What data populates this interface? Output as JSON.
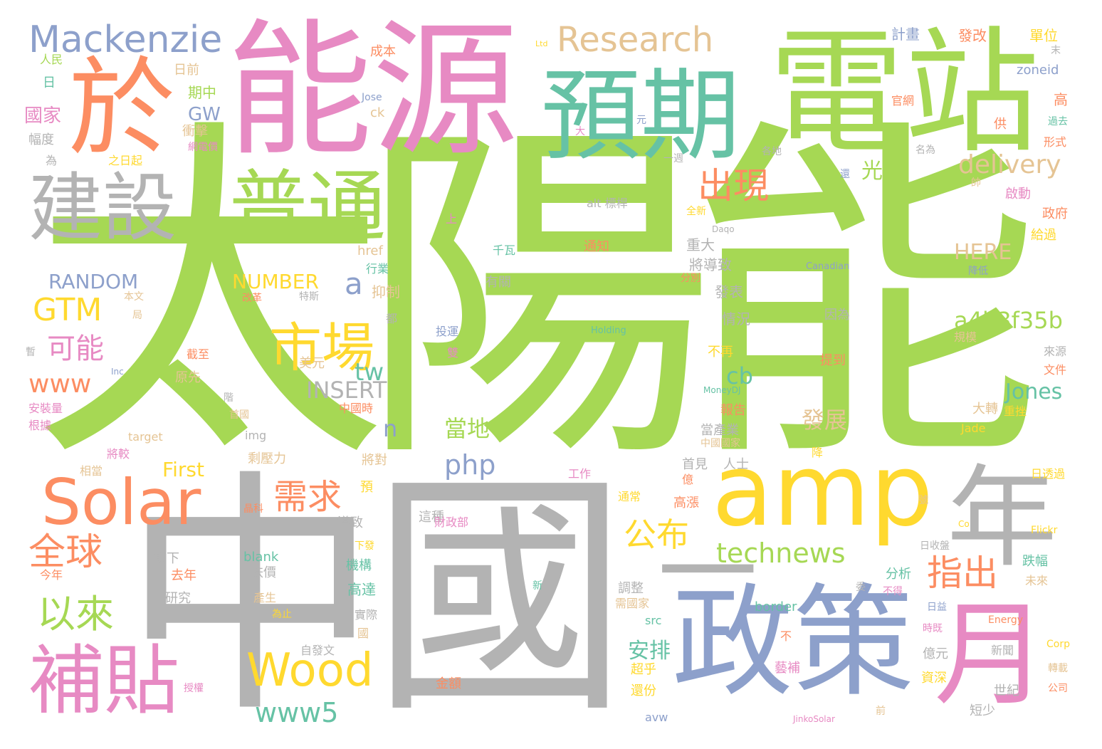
{
  "palette": {
    "green": "#a6d854",
    "gray": "#b3b3b3",
    "pink": "#e78ac3",
    "orange": "#fc8d62",
    "blue": "#8da0cb",
    "yellow": "#ffd92f",
    "teal": "#66c2a5",
    "tan": "#e5c494"
  },
  "words": [
    {
      "text": "太陽能",
      "color": "green"
    },
    {
      "text": "中國",
      "color": "gray"
    },
    {
      "text": "能源",
      "color": "pink"
    },
    {
      "text": "電站",
      "color": "green"
    },
    {
      "text": "於",
      "color": "orange"
    },
    {
      "text": "預期",
      "color": "teal"
    },
    {
      "text": "建設",
      "color": "gray"
    },
    {
      "text": "普通",
      "color": "green"
    },
    {
      "text": "Mackenzie",
      "color": "blue"
    },
    {
      "text": "Research",
      "color": "tan"
    },
    {
      "text": "amp",
      "color": "yellow"
    },
    {
      "text": "年",
      "color": "gray"
    },
    {
      "text": "政策",
      "color": "blue"
    },
    {
      "text": "月",
      "color": "pink"
    },
    {
      "text": "Solar",
      "color": "orange"
    },
    {
      "text": "補貼",
      "color": "pink"
    },
    {
      "text": "市場",
      "color": "yellow"
    },
    {
      "text": "Wood",
      "color": "yellow"
    },
    {
      "text": "一",
      "color": "gray"
    },
    {
      "text": "出現",
      "color": "orange"
    },
    {
      "text": "delivery",
      "color": "tan"
    },
    {
      "text": "需求",
      "color": "orange"
    },
    {
      "text": "全球",
      "color": "orange"
    },
    {
      "text": "以來",
      "color": "green"
    },
    {
      "text": "公布",
      "color": "yellow"
    },
    {
      "text": "technews",
      "color": "green"
    },
    {
      "text": "指出",
      "color": "orange"
    },
    {
      "text": "www5",
      "color": "teal"
    },
    {
      "text": "GTM",
      "color": "yellow"
    },
    {
      "text": "可能",
      "color": "pink"
    },
    {
      "text": "www",
      "color": "orange"
    },
    {
      "text": "php",
      "color": "blue"
    },
    {
      "text": "a4b3f35b",
      "color": "green"
    },
    {
      "text": "Jones",
      "color": "teal"
    },
    {
      "text": "INSERT",
      "color": "gray"
    },
    {
      "text": "RANDOM",
      "color": "blue"
    },
    {
      "text": "NUMBER",
      "color": "yellow"
    },
    {
      "text": "tw",
      "color": "teal"
    },
    {
      "text": "光伏",
      "color": "green"
    },
    {
      "text": "HERE",
      "color": "tan"
    },
    {
      "text": "cb",
      "color": "teal"
    },
    {
      "text": "當地",
      "color": "green"
    },
    {
      "text": "發展",
      "color": "tan"
    },
    {
      "text": "安排",
      "color": "teal"
    },
    {
      "text": "First",
      "color": "yellow"
    },
    {
      "text": "GW",
      "color": "blue"
    },
    {
      "text": "n",
      "color": "blue"
    },
    {
      "text": "a",
      "color": "blue"
    },
    {
      "text": "國家",
      "color": "pink"
    },
    {
      "text": "人民",
      "color": "green"
    },
    {
      "text": "日",
      "color": "teal"
    },
    {
      "text": "幅度",
      "color": "gray"
    },
    {
      "text": "為",
      "color": "gray"
    },
    {
      "text": "日前",
      "color": "tan"
    },
    {
      "text": "期中",
      "color": "green"
    },
    {
      "text": "衝擊",
      "color": "tan"
    },
    {
      "text": "網電價",
      "color": "pink"
    },
    {
      "text": "之日起",
      "color": "yellow"
    },
    {
      "text": "成本",
      "color": "orange"
    },
    {
      "text": "Ltd",
      "color": "yellow"
    },
    {
      "text": "Jose",
      "color": "blue"
    },
    {
      "text": "ck",
      "color": "tan"
    },
    {
      "text": "元",
      "color": "blue"
    },
    {
      "text": "大",
      "color": "pink"
    },
    {
      "text": "計畫",
      "color": "blue"
    },
    {
      "text": "發改",
      "color": "orange"
    },
    {
      "text": "單位",
      "color": "yellow"
    },
    {
      "text": "zoneid",
      "color": "blue"
    },
    {
      "text": "末",
      "color": "gray"
    },
    {
      "text": "高",
      "color": "orange"
    },
    {
      "text": "官網",
      "color": "orange"
    },
    {
      "text": "供",
      "color": "orange"
    },
    {
      "text": "過去",
      "color": "teal"
    },
    {
      "text": "形式",
      "color": "orange"
    },
    {
      "text": "各地",
      "color": "gray"
    },
    {
      "text": "一週",
      "color": "gray"
    },
    {
      "text": "名為",
      "color": "gray"
    },
    {
      "text": "還",
      "color": "blue"
    },
    {
      "text": "帥",
      "color": "tan"
    },
    {
      "text": "啟動",
      "color": "pink"
    },
    {
      "text": "政府",
      "color": "orange"
    },
    {
      "text": "給過",
      "color": "yellow"
    },
    {
      "text": "alt 標桿",
      "color": "gray"
    },
    {
      "text": "全新",
      "color": "yellow"
    },
    {
      "text": "談到",
      "color": "green"
    },
    {
      "text": "Daqo",
      "color": "gray"
    },
    {
      "text": "上",
      "color": "pink"
    },
    {
      "text": "通知",
      "color": "orange"
    },
    {
      "text": "千瓦",
      "color": "teal"
    },
    {
      "text": "重大",
      "color": "gray"
    },
    {
      "text": "將導致",
      "color": "gray"
    },
    {
      "text": "發表",
      "color": "gray"
    },
    {
      "text": "情況",
      "color": "gray"
    },
    {
      "text": "Canadian",
      "color": "blue"
    },
    {
      "text": "降低",
      "color": "blue"
    },
    {
      "text": "href",
      "color": "tan"
    },
    {
      "text": "行業",
      "color": "teal"
    },
    {
      "text": "有關",
      "color": "gray"
    },
    {
      "text": "抑制",
      "color": "tan"
    },
    {
      "text": "分別",
      "color": "orange"
    },
    {
      "text": "因為",
      "color": "gray"
    },
    {
      "text": "本文",
      "color": "tan"
    },
    {
      "text": "局",
      "color": "tan"
    },
    {
      "text": "改革",
      "color": "orange"
    },
    {
      "text": "特斯",
      "color": "gray"
    },
    {
      "text": "都",
      "color": "gray"
    },
    {
      "text": "投運",
      "color": "blue"
    },
    {
      "text": "雙",
      "color": "pink"
    },
    {
      "text": "Holding",
      "color": "teal"
    },
    {
      "text": "New",
      "color": "green"
    },
    {
      "text": "規模",
      "color": "tan"
    },
    {
      "text": "來源",
      "color": "gray"
    },
    {
      "text": "文件",
      "color": "orange"
    },
    {
      "text": "提到",
      "color": "orange"
    },
    {
      "text": "暫",
      "color": "gray"
    },
    {
      "text": "美元",
      "color": "tan"
    },
    {
      "text": "截至",
      "color": "orange"
    },
    {
      "text": "不再",
      "color": "yellow"
    },
    {
      "text": "Inc",
      "color": "blue"
    },
    {
      "text": "原先",
      "color": "tan"
    },
    {
      "text": "階",
      "color": "gray"
    },
    {
      "text": "MoneyDJ",
      "color": "teal"
    },
    {
      "text": "安裝量",
      "color": "pink"
    },
    {
      "text": "首國",
      "color": "tan"
    },
    {
      "text": "根據",
      "color": "pink"
    },
    {
      "text": "中國時",
      "color": "orange"
    },
    {
      "text": "報告",
      "color": "orange"
    },
    {
      "text": "大轉",
      "color": "tan"
    },
    {
      "text": "重挫",
      "color": "yellow"
    },
    {
      "text": "Jade",
      "color": "yellow"
    },
    {
      "text": "當產業",
      "color": "gray"
    },
    {
      "text": "中國國家",
      "color": "tan"
    },
    {
      "text": "target",
      "color": "tan"
    },
    {
      "text": "img",
      "color": "gray"
    },
    {
      "text": "將較",
      "color": "pink"
    },
    {
      "text": "剩壓力",
      "color": "tan"
    },
    {
      "text": "將對",
      "color": "tan"
    },
    {
      "text": "降",
      "color": "yellow"
    },
    {
      "text": "相當",
      "color": "tan"
    },
    {
      "text": "首見",
      "color": "gray"
    },
    {
      "text": "人士",
      "color": "gray"
    },
    {
      "text": "工作",
      "color": "pink"
    },
    {
      "text": "日透過",
      "color": "yellow"
    },
    {
      "text": "億",
      "color": "orange"
    },
    {
      "text": "預",
      "color": "yellow"
    },
    {
      "text": "晶科",
      "color": "orange"
    },
    {
      "text": "通常",
      "color": "yellow"
    },
    {
      "text": "高漲",
      "color": "orange"
    },
    {
      "text": "這種",
      "color": "gray"
    },
    {
      "text": "財政部",
      "color": "pink"
    },
    {
      "text": "導致",
      "color": "gray"
    },
    {
      "text": "號",
      "color": "tan"
    },
    {
      "text": "Co",
      "color": "yellow"
    },
    {
      "text": "Flickr",
      "color": "yellow"
    },
    {
      "text": "日收盤",
      "color": "gray"
    },
    {
      "text": "旗下",
      "color": "gray"
    },
    {
      "text": "blank",
      "color": "teal"
    },
    {
      "text": "今年",
      "color": "orange"
    },
    {
      "text": "去年",
      "color": "orange"
    },
    {
      "text": "下發",
      "color": "yellow"
    },
    {
      "text": "機構",
      "color": "teal"
    },
    {
      "text": "跌價",
      "color": "gray"
    },
    {
      "text": "分析",
      "color": "teal"
    },
    {
      "text": "不得",
      "color": "pink"
    },
    {
      "text": "跌幅",
      "color": "teal"
    },
    {
      "text": "研究",
      "color": "gray"
    },
    {
      "text": "產生",
      "color": "tan"
    },
    {
      "text": "為止",
      "color": "yellow"
    },
    {
      "text": "高達",
      "color": "teal"
    },
    {
      "text": "新",
      "color": "teal"
    },
    {
      "text": "調整",
      "color": "gray"
    },
    {
      "text": "需國家",
      "color": "tan"
    },
    {
      "text": "委",
      "color": "gray"
    },
    {
      "text": "日益",
      "color": "blue"
    },
    {
      "text": "未來",
      "color": "tan"
    },
    {
      "text": "border",
      "color": "teal"
    },
    {
      "text": "時既",
      "color": "pink"
    },
    {
      "text": "src",
      "color": "teal"
    },
    {
      "text": "實際",
      "color": "gray"
    },
    {
      "text": "國",
      "color": "tan"
    },
    {
      "text": "Energy",
      "color": "orange"
    },
    {
      "text": "億元",
      "color": "gray"
    },
    {
      "text": "自發文",
      "color": "gray"
    },
    {
      "text": "不",
      "color": "orange"
    },
    {
      "text": "新聞",
      "color": "gray"
    },
    {
      "text": "Corp",
      "color": "yellow"
    },
    {
      "text": "轉載",
      "color": "tan"
    },
    {
      "text": "超乎",
      "color": "yellow"
    },
    {
      "text": "藝補",
      "color": "pink"
    },
    {
      "text": "資深",
      "color": "yellow"
    },
    {
      "text": "公司",
      "color": "orange"
    },
    {
      "text": "授權",
      "color": "pink"
    },
    {
      "text": "金額",
      "color": "orange"
    },
    {
      "text": "還份",
      "color": "yellow"
    },
    {
      "text": "世紀",
      "color": "gray"
    },
    {
      "text": "短少",
      "color": "gray"
    },
    {
      "text": "avw",
      "color": "blue"
    },
    {
      "text": "前",
      "color": "tan"
    },
    {
      "text": "JinkoSolar",
      "color": "pink"
    }
  ]
}
